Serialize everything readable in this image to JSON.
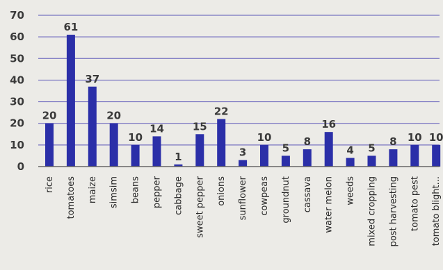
{
  "chart_data": {
    "type": "bar",
    "categories": [
      "rice",
      "tomatoes",
      "maize",
      "simsim",
      "beans",
      "pepper",
      "cabbage",
      "sweet pepper",
      "onions",
      "sunflower",
      "cowpeas",
      "groundnut",
      "cassava",
      "water melon",
      "weeds",
      "mixed cropping",
      "post harvesting",
      "tomato pest",
      "tomato blight..."
    ],
    "values": [
      20,
      61,
      37,
      20,
      10,
      14,
      1,
      15,
      22,
      3,
      10,
      5,
      8,
      16,
      4,
      5,
      8,
      10,
      10
    ],
    "data_labels": [
      "20",
      "61",
      "37",
      "20",
      "10",
      "14",
      "1",
      "15",
      "22",
      "3",
      "10",
      "5",
      "8",
      "16",
      "4",
      "5",
      "8",
      "10",
      "10"
    ],
    "y_ticks": [
      0,
      10,
      20,
      30,
      40,
      50,
      60,
      70
    ],
    "ylim": [
      0,
      70
    ],
    "grid": true,
    "legend": "none",
    "bar_color": "#2b2fa8",
    "grid_color": "#5a54b8"
  }
}
